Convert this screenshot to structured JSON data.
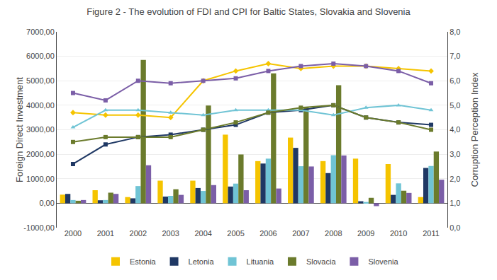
{
  "chart_data": {
    "type": "bar",
    "title": "Figure 2 - The evolution of FDI and CPI for Baltic States, Slovakia and Slovenia",
    "categories": [
      "2000",
      "2001",
      "2002",
      "2003",
      "2004",
      "2005",
      "2006",
      "2007",
      "2008",
      "2009",
      "2010",
      "2011"
    ],
    "ylabel": "Foreign Direct Investment",
    "y2label": "Corruption Perception Index",
    "ylim": [
      -1000,
      7000
    ],
    "yticks": [
      {
        "value": -1000,
        "label": "-1000,00"
      },
      {
        "value": 0,
        "label": "0,00"
      },
      {
        "value": 1000,
        "label": "1000,00"
      },
      {
        "value": 2000,
        "label": "2000,00"
      },
      {
        "value": 3000,
        "label": "3000,00"
      },
      {
        "value": 4000,
        "label": "4000,00"
      },
      {
        "value": 5000,
        "label": "5000,00"
      },
      {
        "value": 6000,
        "label": "6000,00"
      },
      {
        "value": 7000,
        "label": "7000,00"
      }
    ],
    "y2lim": [
      0.0,
      8.0
    ],
    "y2ticks": [
      {
        "value": 0.0,
        "label": "0,0"
      },
      {
        "value": 1.0,
        "label": "1,0"
      },
      {
        "value": 2.0,
        "label": "2,0"
      },
      {
        "value": 3.0,
        "label": "3,0"
      },
      {
        "value": 4.0,
        "label": "4,0"
      },
      {
        "value": 5.0,
        "label": "5,0"
      },
      {
        "value": 6.0,
        "label": "6,0"
      },
      {
        "value": 7.0,
        "label": "7,0"
      },
      {
        "value": 8.0,
        "label": "8,0"
      }
    ],
    "grid": true,
    "legend": "bottom",
    "series": [
      {
        "name": "Estonia",
        "type": "bar",
        "color": "#F5C400",
        "values": [
          350,
          530,
          250,
          920,
          920,
          2800,
          1720,
          2680,
          1720,
          1820,
          1600,
          250
        ]
      },
      {
        "name": "Letonia",
        "type": "bar",
        "color": "#1F3864",
        "values": [
          380,
          120,
          200,
          270,
          620,
          680,
          1620,
          2260,
          1230,
          80,
          340,
          1440
        ]
      },
      {
        "name": "Lituania",
        "type": "bar",
        "color": "#70C4D5",
        "values": [
          130,
          130,
          700,
          300,
          500,
          800,
          1820,
          1510,
          1960,
          50,
          810,
          1520
        ]
      },
      {
        "name": "Slovacia",
        "type": "bar",
        "color": "#6B7B2C",
        "values": [
          100,
          430,
          5850,
          570,
          3990,
          1990,
          5300,
          3940,
          4820,
          220,
          510,
          2110
        ]
      },
      {
        "name": "Slovenia",
        "type": "bar",
        "color": "#7B5EA7",
        "values": [
          130,
          380,
          1550,
          340,
          740,
          530,
          600,
          1500,
          1950,
          -120,
          420,
          960
        ]
      },
      {
        "name": "Estonia",
        "type": "line",
        "axis": "y2",
        "marker": "diamond",
        "color": "#F5C400",
        "values": [
          4.7,
          4.6,
          4.6,
          4.5,
          6.0,
          6.4,
          6.7,
          6.5,
          6.6,
          6.6,
          6.5,
          6.4
        ]
      },
      {
        "name": "Letonia",
        "type": "line",
        "axis": "y2",
        "marker": "square",
        "color": "#1F3864",
        "values": [
          2.6,
          3.4,
          3.7,
          3.8,
          4.0,
          4.2,
          4.7,
          4.8,
          5.0,
          4.5,
          4.3,
          4.2
        ]
      },
      {
        "name": "Lituania",
        "type": "line",
        "axis": "y2",
        "marker": "triangle-up",
        "color": "#70C4D5",
        "values": [
          4.1,
          4.8,
          4.8,
          4.7,
          4.6,
          4.8,
          4.8,
          4.8,
          4.6,
          4.9,
          5.0,
          4.8
        ]
      },
      {
        "name": "Slovacia",
        "type": "line",
        "axis": "y2",
        "marker": "square",
        "color": "#6B7B2C",
        "values": [
          3.5,
          3.7,
          3.7,
          3.7,
          4.0,
          4.3,
          4.7,
          4.9,
          5.0,
          4.5,
          4.3,
          4.0
        ]
      },
      {
        "name": "Slovenia",
        "type": "line",
        "axis": "y2",
        "marker": "square",
        "color": "#7B5EA7",
        "values": [
          5.5,
          5.2,
          6.0,
          5.9,
          6.0,
          6.1,
          6.4,
          6.6,
          6.7,
          6.6,
          6.4,
          5.9
        ]
      }
    ]
  }
}
